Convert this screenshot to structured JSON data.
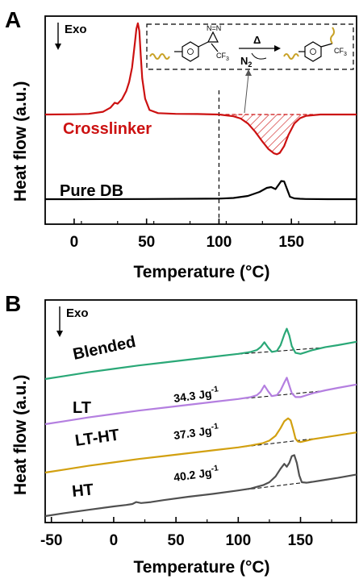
{
  "colors": {
    "crosslinker": "#cc1111",
    "pure_db": "#000000",
    "blended": "#2aa877",
    "lt": "#b47fe0",
    "lt_ht": "#d2a010",
    "ht": "#505050",
    "linker_wave": "#c9a227"
  },
  "chart_data": [
    {
      "panel": "A",
      "type": "line",
      "ylabel": "Heat flow (a.u.)",
      "xlabel": "Temperature (°C)",
      "xlim": [
        -20,
        195
      ],
      "xticks": [
        0,
        50,
        100,
        150
      ],
      "xtick_labels": [
        "0",
        "50",
        "100",
        "150"
      ],
      "y_ticks": "none",
      "exo_label": "Exo",
      "exo_direction": "down",
      "dashed_vertical_at": 100,
      "series": [
        {
          "name": "Crosslinker",
          "color_key": "crosslinker",
          "x": [
            -20,
            0,
            10,
            20,
            25,
            28,
            30,
            33,
            36,
            38,
            40,
            41,
            42,
            43,
            44,
            45,
            46,
            47,
            49,
            52,
            58,
            70,
            85,
            100,
            110,
            115,
            120,
            125,
            130,
            134,
            138,
            140,
            142,
            145,
            148,
            152,
            156,
            160,
            170,
            180,
            195
          ],
          "y": [
            0.0,
            0.05,
            0.15,
            0.6,
            1.5,
            2.6,
            2.4,
            3.4,
            5.2,
            7.2,
            10.4,
            13.2,
            16.0,
            19.0,
            20.2,
            18.5,
            13.0,
            8.0,
            3.5,
            1.0,
            0.3,
            0.15,
            0.1,
            0.0,
            -0.4,
            -0.9,
            -2.0,
            -3.8,
            -6.0,
            -7.6,
            -8.6,
            -8.8,
            -8.5,
            -7.0,
            -4.5,
            -2.0,
            -0.8,
            -0.3,
            0.0,
            0.0,
            0.0
          ]
        },
        {
          "name": "Pure DB",
          "color_key": "pure_db",
          "x": [
            -20,
            0,
            50,
            100,
            110,
            120,
            128,
            133,
            136,
            139,
            141,
            143,
            145,
            147,
            149,
            152,
            156,
            160,
            175,
            195
          ],
          "y": [
            0.0,
            0.0,
            0.05,
            0.15,
            0.3,
            0.8,
            1.8,
            2.8,
            3.0,
            2.5,
            3.5,
            4.5,
            4.4,
            2.5,
            0.6,
            0.2,
            0.1,
            0.05,
            0.0,
            0.0
          ]
        }
      ],
      "shaded_region": {
        "series": "Crosslinker",
        "x_range": [
          100,
          165
        ],
        "pattern": "diagonal-hatch"
      },
      "inset": {
        "description_labels": {
          "diazirine_n": "N=N",
          "cf3_left": "CF",
          "cf3_sub": "3",
          "delta": "Δ",
          "n2": "N",
          "n2_sub": "2",
          "cf3_right": "CF",
          "cf3_right_sub": "3"
        }
      }
    },
    {
      "panel": "B",
      "type": "line",
      "ylabel": "Heat flow (a.u.)",
      "xlabel": "Temperature (°C)",
      "xlim": [
        -55,
        195
      ],
      "xticks": [
        -50,
        0,
        50,
        100,
        150
      ],
      "xtick_labels": [
        "-50",
        "0",
        "50",
        "100",
        "150"
      ],
      "y_ticks": "none",
      "exo_label": "Exo",
      "exo_direction": "down",
      "series": [
        {
          "name": "Blended",
          "color_key": "blended",
          "x": [
            -55,
            -40,
            -20,
            0,
            20,
            40,
            60,
            80,
            100,
            110,
            115,
            118,
            121,
            124,
            127,
            131,
            134,
            137,
            139,
            141,
            143,
            146,
            150,
            155,
            160,
            170,
            180,
            195
          ],
          "y": [
            0.0,
            0.6,
            1.4,
            2.1,
            2.8,
            3.4,
            4.0,
            4.6,
            5.2,
            5.6,
            6.0,
            6.6,
            7.6,
            6.5,
            5.6,
            5.8,
            7.0,
            9.2,
            10.4,
            9.0,
            6.8,
            5.4,
            5.2,
            5.6,
            6.0,
            6.6,
            7.0,
            7.7
          ]
        },
        {
          "name": "LT",
          "color_key": "lt",
          "x": [
            -55,
            -40,
            -20,
            0,
            20,
            40,
            60,
            80,
            100,
            110,
            115,
            118,
            121,
            124,
            127,
            131,
            134,
            137,
            139,
            141,
            143,
            146,
            150,
            155,
            160,
            170,
            180,
            195
          ],
          "y": [
            0.0,
            0.6,
            1.4,
            2.1,
            2.8,
            3.4,
            4.0,
            4.6,
            5.2,
            5.6,
            6.0,
            6.7,
            8.0,
            6.8,
            5.8,
            6.0,
            7.0,
            8.6,
            9.6,
            8.0,
            6.4,
            5.6,
            5.6,
            6.0,
            6.4,
            7.0,
            7.5,
            8.2
          ]
        },
        {
          "name": "LT-HT",
          "color_key": "lt_ht",
          "x": [
            -55,
            -40,
            -20,
            0,
            20,
            40,
            60,
            80,
            100,
            110,
            120,
            125,
            130,
            134,
            137,
            140,
            142,
            144,
            146,
            148,
            150,
            155,
            160,
            170,
            180,
            195
          ],
          "y": [
            0.0,
            0.6,
            1.4,
            2.1,
            2.8,
            3.4,
            4.0,
            4.6,
            5.2,
            5.6,
            6.1,
            6.6,
            7.6,
            9.2,
            10.6,
            11.2,
            10.8,
            9.0,
            7.0,
            6.4,
            6.3,
            6.6,
            6.9,
            7.3,
            7.7,
            8.3
          ]
        },
        {
          "name": "HT",
          "color_key": "ht",
          "x": [
            -55,
            -40,
            -20,
            0,
            10,
            15,
            18,
            22,
            30,
            40,
            60,
            80,
            100,
            110,
            120,
            125,
            130,
            134,
            137,
            139,
            141,
            143,
            145,
            147,
            149,
            151,
            155,
            160,
            170,
            180,
            195
          ],
          "y": [
            0.0,
            0.6,
            1.3,
            2.0,
            2.3,
            2.5,
            2.9,
            2.7,
            2.9,
            3.3,
            4.0,
            4.6,
            5.3,
            5.7,
            6.4,
            7.0,
            8.2,
            9.8,
            10.8,
            10.2,
            11.0,
            12.4,
            12.6,
            11.0,
            8.4,
            7.0,
            6.9,
            7.1,
            7.5,
            7.9,
            8.6
          ]
        }
      ],
      "enthalpy_labels": [
        {
          "value": "34.3 Jg",
          "sup": "-1",
          "between": "Blended/LT"
        },
        {
          "value": "37.3 Jg",
          "sup": "-1",
          "between": "LT/LT-HT"
        },
        {
          "value": "40.2 Jg",
          "sup": "-1",
          "between": "LT-HT/HT"
        }
      ]
    }
  ],
  "labels": {
    "panel_a": "A",
    "panel_b": "B"
  }
}
